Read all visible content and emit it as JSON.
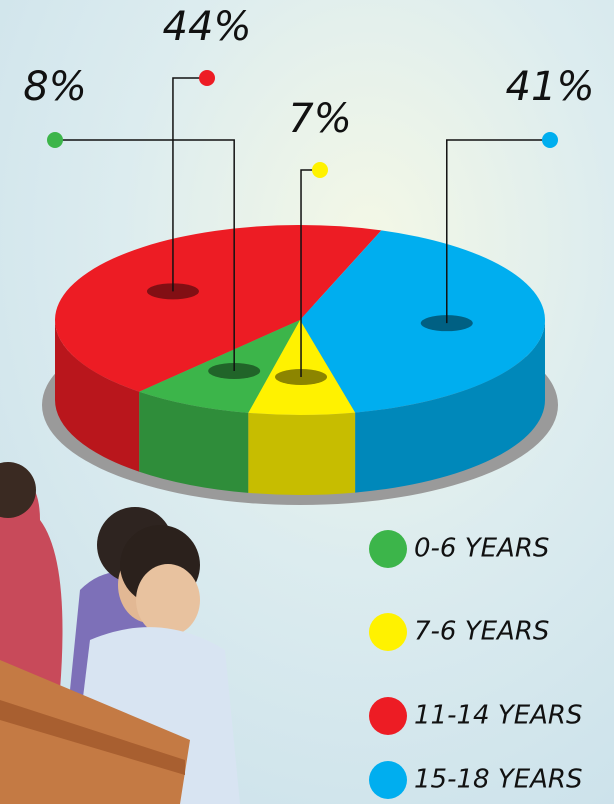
{
  "chart_data": {
    "type": "pie",
    "categories": [
      "0-6 YEARS",
      "7-6 YEARS",
      "11-14 YEARS",
      "15-18 YEARS"
    ],
    "values": [
      8,
      7,
      44,
      41
    ],
    "value_labels": [
      "8%",
      "7%",
      "44%",
      "41%"
    ],
    "colors": [
      "#3cb54a",
      "#fff200",
      "#ed1c24",
      "#00aeef"
    ],
    "legend": "bottom-right"
  }
}
